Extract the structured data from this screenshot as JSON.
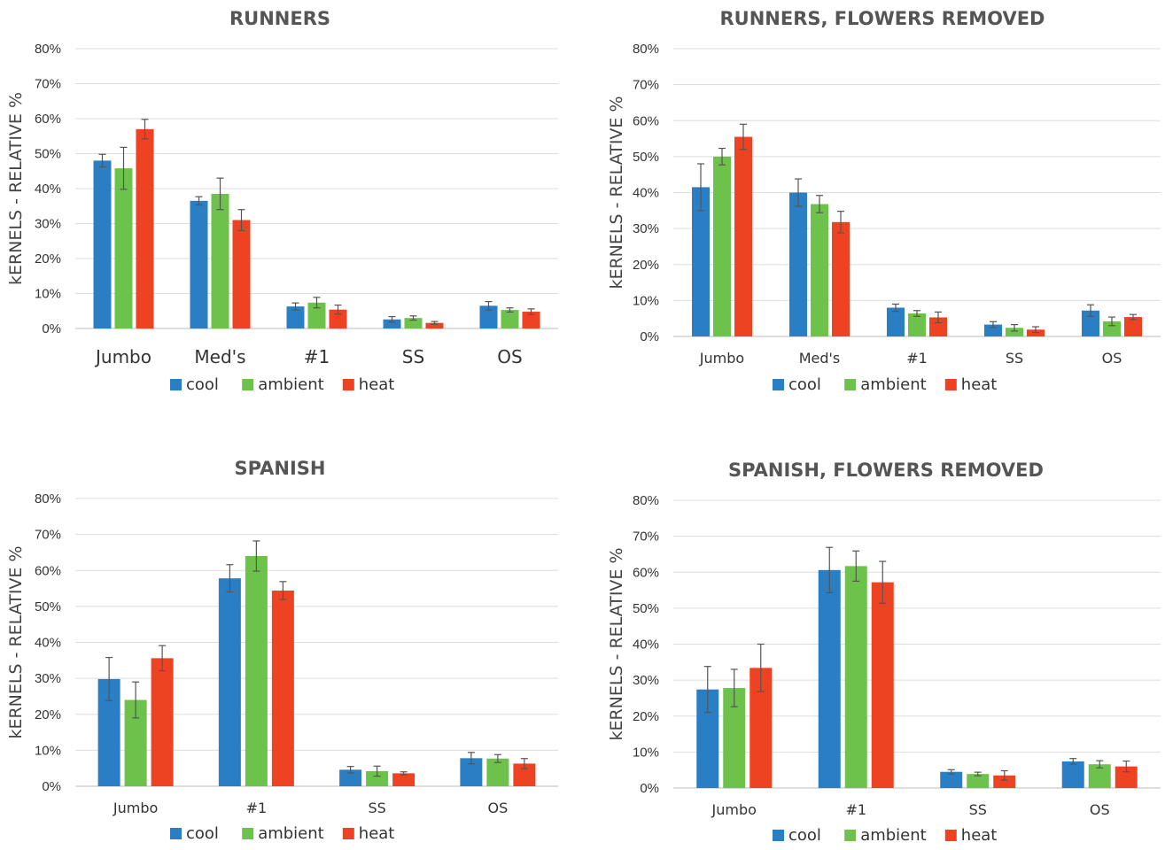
{
  "colors": {
    "cool": "#2a7fc4",
    "ambient": "#6cc24a",
    "heat": "#ee4322",
    "grid": "#dddddd",
    "errorbar": "#555555"
  },
  "chart_data": [
    {
      "type": "bar",
      "title": "RUNNERS",
      "ylabel": "kERNELS - RELATIVE %",
      "ylim": [
        0,
        80
      ],
      "yticks": [
        "0%",
        "10%",
        "20%",
        "30%",
        "40%",
        "50%",
        "60%",
        "70%",
        "80%"
      ],
      "categories": [
        "Jumbo",
        "Med's",
        "#1",
        "SS",
        "OS"
      ],
      "legend_position": "bottom",
      "series": [
        {
          "name": "cool",
          "values": [
            48,
            36.5,
            6.3,
            2.6,
            6.5
          ],
          "errors": [
            1.8,
            1.2,
            1.0,
            0.8,
            1.2
          ]
        },
        {
          "name": "ambient",
          "values": [
            45.8,
            38.5,
            7.4,
            3.0,
            5.3
          ],
          "errors": [
            6,
            4.5,
            1.5,
            0.6,
            0.6
          ]
        },
        {
          "name": "heat",
          "values": [
            57,
            31,
            5.4,
            1.6,
            4.8
          ],
          "errors": [
            2.8,
            3,
            1.3,
            0.4,
            0.8
          ]
        }
      ]
    },
    {
      "type": "bar",
      "title": "RUNNERS, FLOWERS REMOVED",
      "ylabel": "kERNELS - RELATIVE %",
      "ylim": [
        0,
        80
      ],
      "yticks": [
        "0%",
        "10%",
        "20%",
        "30%",
        "40%",
        "50%",
        "60%",
        "70%",
        "80%"
      ],
      "categories": [
        "Jumbo",
        "Med's",
        "#1",
        "SS",
        "OS"
      ],
      "legend_position": "bottom",
      "series": [
        {
          "name": "cool",
          "values": [
            41.5,
            40,
            8,
            3.3,
            7.2
          ],
          "errors": [
            6.5,
            3.8,
            1.0,
            0.8,
            1.6
          ]
        },
        {
          "name": "ambient",
          "values": [
            50,
            36.8,
            6.4,
            2.4,
            4.2
          ],
          "errors": [
            2.3,
            2.4,
            0.8,
            0.9,
            1.2
          ]
        },
        {
          "name": "heat",
          "values": [
            55.5,
            31.8,
            5.3,
            1.9,
            5.4
          ],
          "errors": [
            3.5,
            3,
            1.5,
            0.8,
            0.7
          ]
        }
      ]
    },
    {
      "type": "bar",
      "title": "SPANISH",
      "ylabel": "kERNELS - RELATIVE %",
      "ylim": [
        0,
        80
      ],
      "yticks": [
        "0%",
        "10%",
        "20%",
        "30%",
        "40%",
        "50%",
        "60%",
        "70%",
        "80%"
      ],
      "categories": [
        "Jumbo",
        "#1",
        "SS",
        "OS"
      ],
      "legend_position": "bottom",
      "series": [
        {
          "name": "cool",
          "values": [
            29.8,
            57.8,
            4.6,
            7.8
          ],
          "errors": [
            6,
            3.8,
            0.9,
            1.6
          ]
        },
        {
          "name": "ambient",
          "values": [
            24,
            64,
            4.2,
            7.7
          ],
          "errors": [
            5,
            4.2,
            1.4,
            1.1
          ]
        },
        {
          "name": "heat",
          "values": [
            35.6,
            54.4,
            3.6,
            6.3
          ],
          "errors": [
            3.5,
            2.5,
            0.4,
            1.4
          ]
        }
      ]
    },
    {
      "type": "bar",
      "title": "SPANISH, FLOWERS REMOVED",
      "ylabel": "kERNELS - RELATIVE %",
      "ylim": [
        0,
        80
      ],
      "yticks": [
        "0%",
        "10%",
        "20%",
        "30%",
        "40%",
        "50%",
        "60%",
        "70%",
        "80%"
      ],
      "categories": [
        "Jumbo",
        "#1",
        "SS",
        "OS"
      ],
      "legend_position": "bottom",
      "series": [
        {
          "name": "cool",
          "values": [
            27.4,
            60.6,
            4.5,
            7.4
          ],
          "errors": [
            6.4,
            6.3,
            0.6,
            0.8
          ]
        },
        {
          "name": "ambient",
          "values": [
            27.8,
            61.7,
            3.9,
            6.6
          ],
          "errors": [
            5.2,
            4.2,
            0.5,
            1.0
          ]
        },
        {
          "name": "heat",
          "values": [
            33.4,
            57.2,
            3.5,
            6.0
          ],
          "errors": [
            6.6,
            5.8,
            1.3,
            1.5
          ]
        }
      ]
    }
  ]
}
